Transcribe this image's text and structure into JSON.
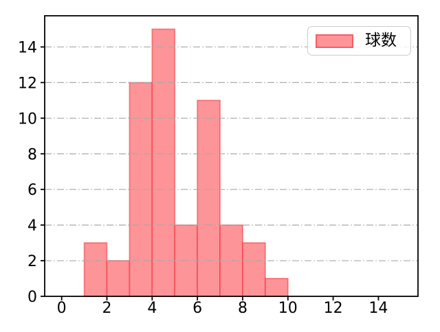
{
  "chart_data": {
    "type": "bar",
    "subtype": "histogram",
    "title": "",
    "xlabel": "",
    "ylabel": "",
    "bin_edges": [
      1,
      2,
      3,
      4,
      5,
      6,
      7,
      8,
      9,
      10
    ],
    "counts": [
      3,
      2,
      12,
      15,
      4,
      11,
      4,
      3,
      1
    ],
    "xticks": [
      0,
      2,
      4,
      6,
      8,
      10,
      12,
      14
    ],
    "yticks": [
      0,
      2,
      4,
      6,
      8,
      10,
      12,
      14
    ],
    "xlim": [
      -0.75,
      15.75
    ],
    "ylim": [
      0,
      15.75
    ],
    "grid": {
      "axis": "y",
      "linestyle": "dashdot",
      "color": "#a9a9a9"
    },
    "legend": {
      "label": "球数",
      "position": "upper right"
    },
    "colors": {
      "bar_fill": "#fc9498",
      "bar_edge": "rgba(242,38,48,0.5)",
      "spine": "#000000",
      "tick_text": "#000000",
      "legend_border": "#cccccc"
    }
  }
}
